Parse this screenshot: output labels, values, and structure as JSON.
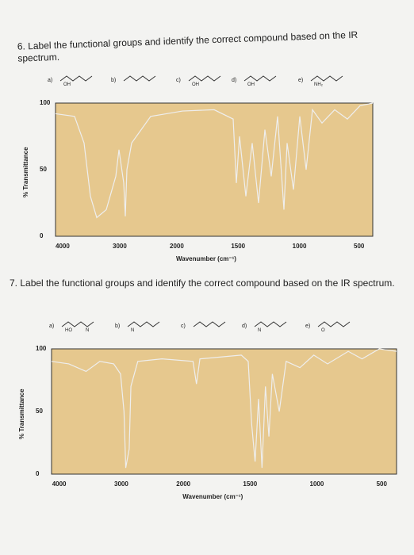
{
  "questions": [
    {
      "text": "6. Label the functional groups and identify the correct compound based on the IR spectrum.",
      "options": [
        {
          "label": "a)",
          "atoms": [
            "OH"
          ]
        },
        {
          "label": "b)"
        },
        {
          "label": "c)",
          "atoms": [
            "OH"
          ]
        },
        {
          "label": "d)",
          "atoms": [
            "OH"
          ]
        },
        {
          "label": "e)",
          "atoms": [
            "NH₂"
          ]
        }
      ],
      "y_label": "% Transmittance",
      "x_label": "Wavenumber (cm⁻¹)",
      "yticks": [
        100,
        50,
        0
      ],
      "xticks": [
        4000,
        3000,
        2000,
        1500,
        1000,
        500
      ]
    },
    {
      "text": "7. Label the functional groups and identify the correct compound based on the IR spectrum.",
      "options": [
        {
          "label": "a)",
          "atoms": [
            "HO",
            "N"
          ]
        },
        {
          "label": "b)",
          "atoms": [
            "N"
          ]
        },
        {
          "label": "c)"
        },
        {
          "label": "d)",
          "atoms": [
            "N"
          ]
        },
        {
          "label": "e)",
          "atoms": [
            "O"
          ]
        }
      ],
      "y_label": "% Transmittance",
      "x_label": "Wavenumber (cm⁻¹)",
      "yticks": [
        100,
        50,
        0
      ],
      "xticks": [
        4000,
        3000,
        2000,
        1500,
        1000,
        500
      ]
    }
  ]
}
